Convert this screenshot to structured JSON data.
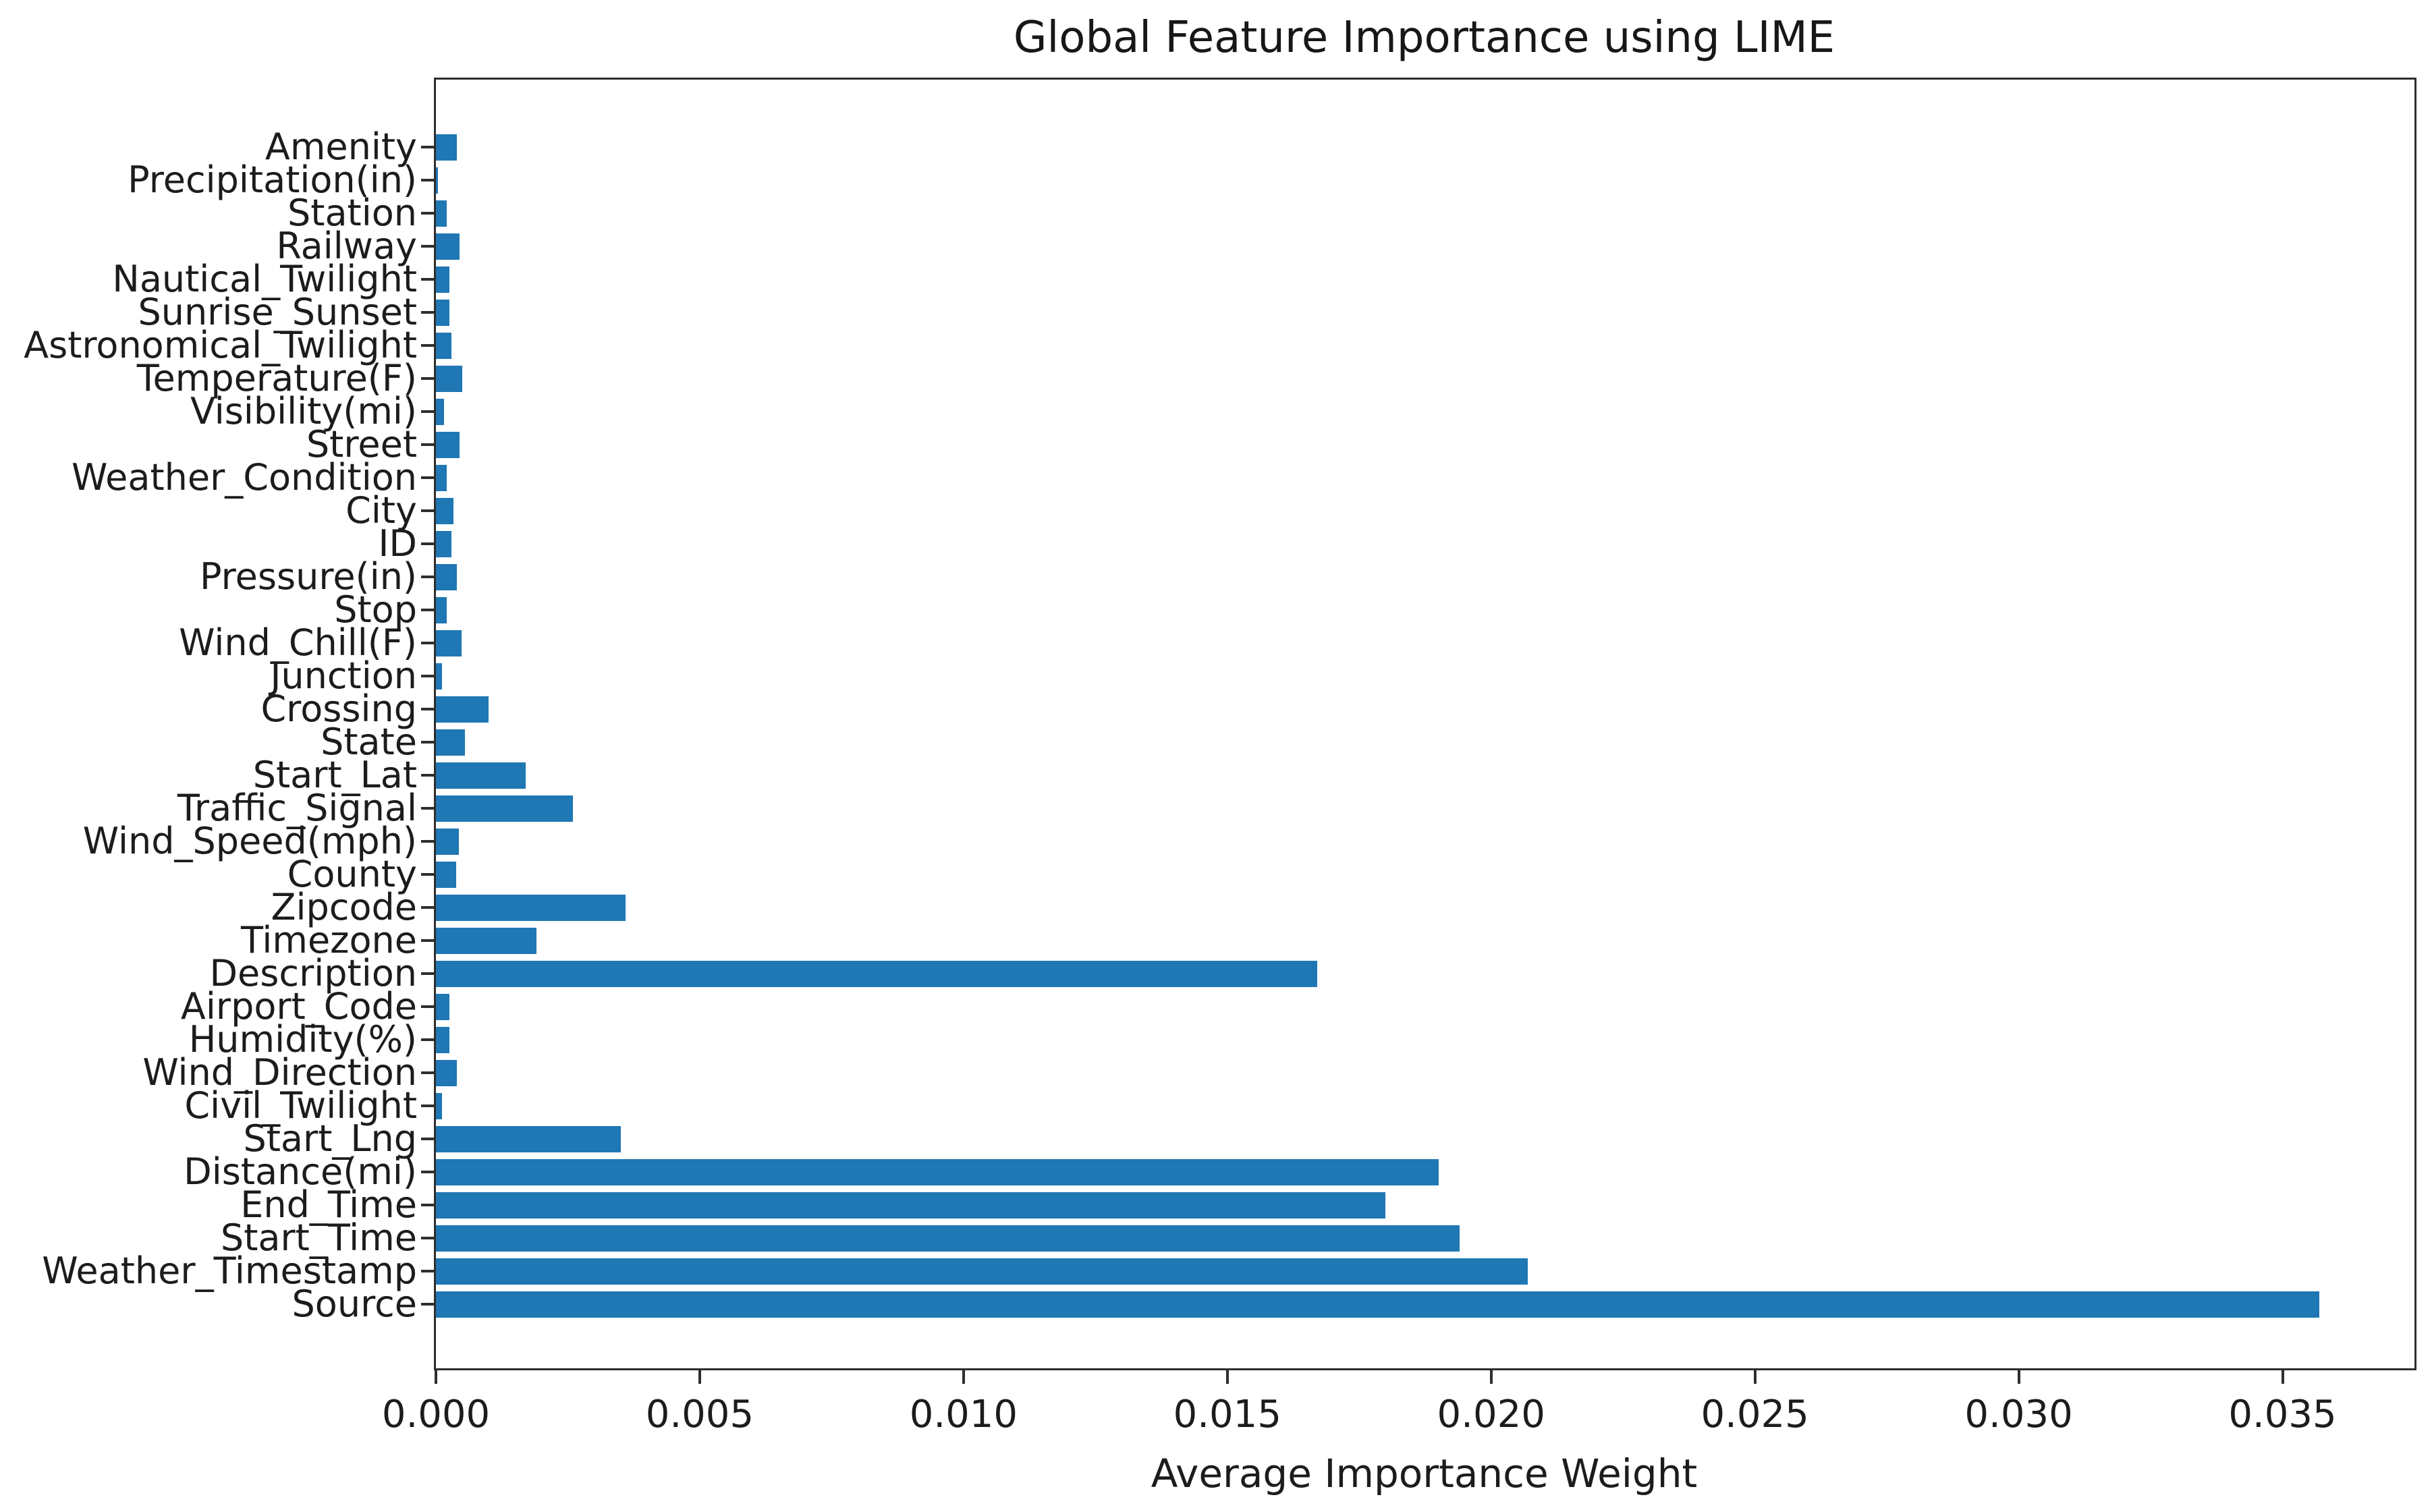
{
  "chart_data": {
    "type": "bar",
    "orientation": "horizontal",
    "title": "Global Feature Importance using LIME",
    "xlabel": "Average Importance Weight",
    "ylabel": "",
    "bar_color": "#1f77b4",
    "grid": false,
    "legend": null,
    "xlim": [
      0,
      0.0375
    ],
    "xticks": [
      0.0,
      0.005,
      0.01,
      0.015,
      0.02,
      0.025,
      0.03,
      0.035
    ],
    "xticklabels": [
      "0.000",
      "0.005",
      "0.010",
      "0.015",
      "0.020",
      "0.025",
      "0.030",
      "0.035"
    ],
    "categories": [
      "Amenity",
      "Precipitation(in)",
      "Station",
      "Railway",
      "Nautical_Twilight",
      "Sunrise_Sunset",
      "Astronomical_Twilight",
      "Temperature(F)",
      "Visibility(mi)",
      "Street",
      "Weather_Condition",
      "City",
      "ID",
      "Pressure(in)",
      "Stop",
      "Wind_Chill(F)",
      "Junction",
      "Crossing",
      "State",
      "Start_Lat",
      "Traffic_Signal",
      "Wind_Speed(mph)",
      "County",
      "Zipcode",
      "Timezone",
      "Description",
      "Airport_Code",
      "Humidity(%)",
      "Wind_Direction",
      "Civil_Twilight",
      "Start_Lng",
      "Distance(mi)",
      "End_Time",
      "Start_Time",
      "Weather_Timestamp",
      "Source"
    ],
    "values": [
      0.0004,
      4e-05,
      0.0002,
      0.00045,
      0.00026,
      0.00026,
      0.0003,
      0.0005,
      0.00015,
      0.00045,
      0.0002,
      0.00033,
      0.0003,
      0.0004,
      0.0002,
      0.00048,
      0.00012,
      0.001,
      0.00055,
      0.0017,
      0.0026,
      0.00043,
      0.00038,
      0.0036,
      0.0019,
      0.0167,
      0.00026,
      0.00026,
      0.0004,
      0.00012,
      0.0035,
      0.019,
      0.018,
      0.0194,
      0.0207,
      0.0357
    ]
  }
}
